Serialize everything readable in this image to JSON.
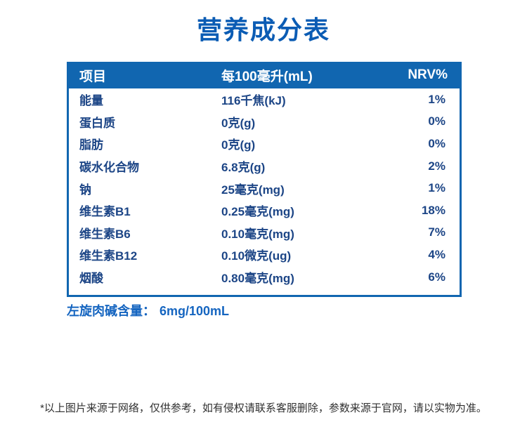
{
  "title": "营养成分表",
  "table": {
    "headers": [
      "项目",
      "每100毫升(mL)",
      "NRV%"
    ],
    "rows": [
      {
        "item": "能量",
        "amount": "116千焦(kJ)",
        "nrv": "1%"
      },
      {
        "item": "蛋白质",
        "amount": "0克(g)",
        "nrv": "0%"
      },
      {
        "item": "脂肪",
        "amount": "0克(g)",
        "nrv": "0%"
      },
      {
        "item": "碳水化合物",
        "amount": "6.8克(g)",
        "nrv": "2%"
      },
      {
        "item": "钠",
        "amount": "25毫克(mg)",
        "nrv": "1%"
      },
      {
        "item": "维生素B1",
        "amount": "0.25毫克(mg)",
        "nrv": "18%"
      },
      {
        "item": "维生素B6",
        "amount": "0.10毫克(mg)",
        "nrv": "7%"
      },
      {
        "item": "维生素B12",
        "amount": "0.10微克(ug)",
        "nrv": "4%"
      },
      {
        "item": "烟酸",
        "amount": "0.80毫克(mg)",
        "nrv": "6%"
      }
    ]
  },
  "carnitine": {
    "label": "左旋肉碱含量：",
    "value": "6mg/100mL"
  },
  "disclaimer": "*以上图片来源于网络，仅供参考，如有侵权请联系客服删除，参数来源于官网，请以实物为准。",
  "colors": {
    "title_blue": "#0b5cb4",
    "header_blue": "#1166b0",
    "row_navy": "#1c4586",
    "note_blue": "#1565c0",
    "footer_gray": "#303030"
  }
}
